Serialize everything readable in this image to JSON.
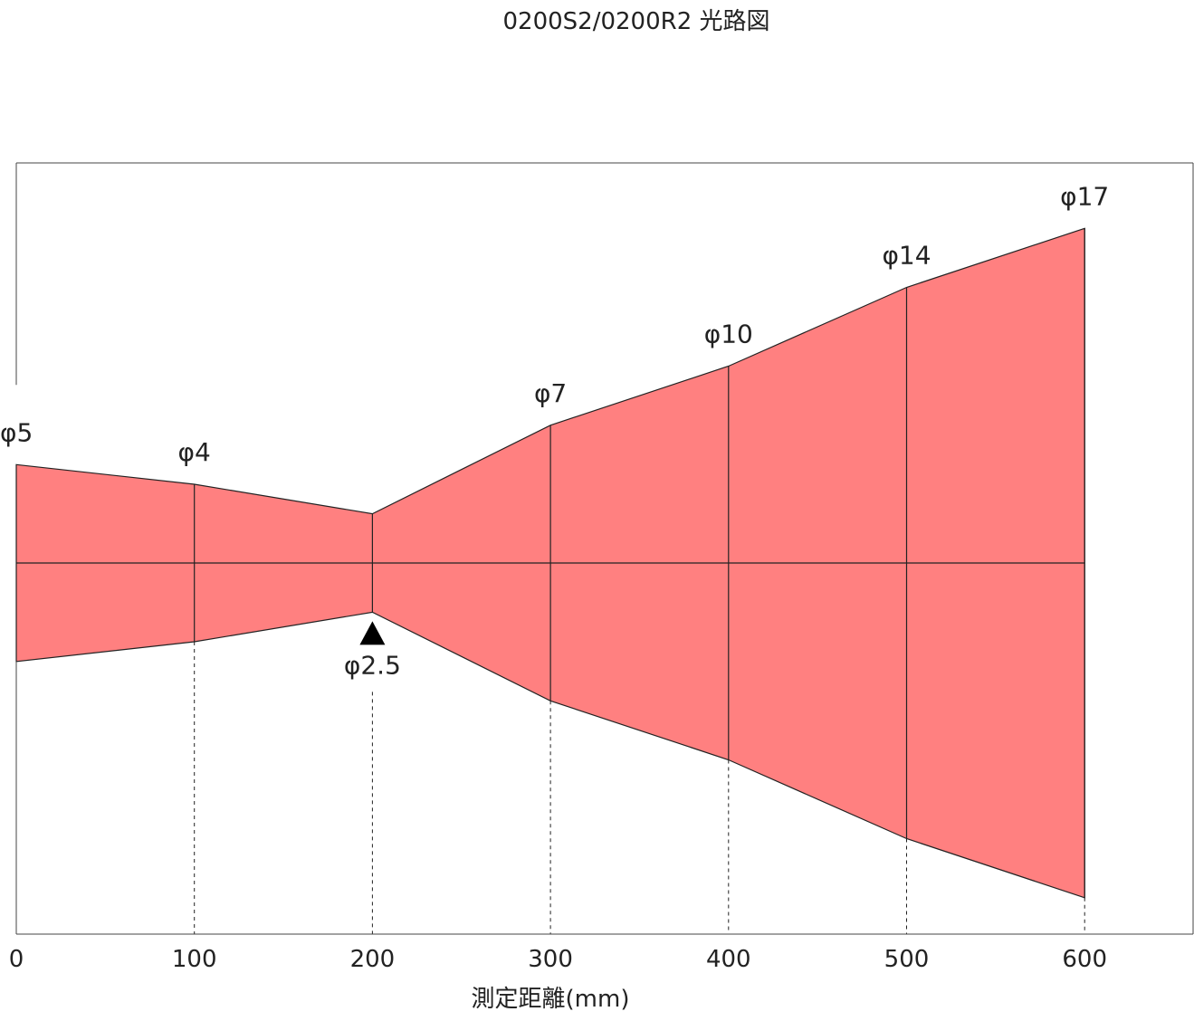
{
  "chart_data": {
    "type": "area",
    "title": "0200S2/0200R2 光路図",
    "xlabel": "測定距離(mm)",
    "ylabel": "",
    "x_ticks": [
      0,
      100,
      200,
      300,
      400,
      500,
      600
    ],
    "xlim": [
      0,
      660
    ],
    "grid": false,
    "colors": {
      "beam_fill": "#ff8080",
      "beam_edge": "#222222",
      "frame": "#444444",
      "marker": "#000000"
    },
    "beam": [
      {
        "distance": 0,
        "diameter": 5,
        "label": "φ5"
      },
      {
        "distance": 100,
        "diameter": 4,
        "label": "φ4"
      },
      {
        "distance": 200,
        "diameter": 2.5,
        "label": "φ2.5",
        "focus": true
      },
      {
        "distance": 300,
        "diameter": 7,
        "label": "φ7"
      },
      {
        "distance": 400,
        "diameter": 10,
        "label": "φ10"
      },
      {
        "distance": 500,
        "diameter": 14,
        "label": "φ14"
      },
      {
        "distance": 600,
        "diameter": 17,
        "label": "φ17"
      }
    ]
  }
}
